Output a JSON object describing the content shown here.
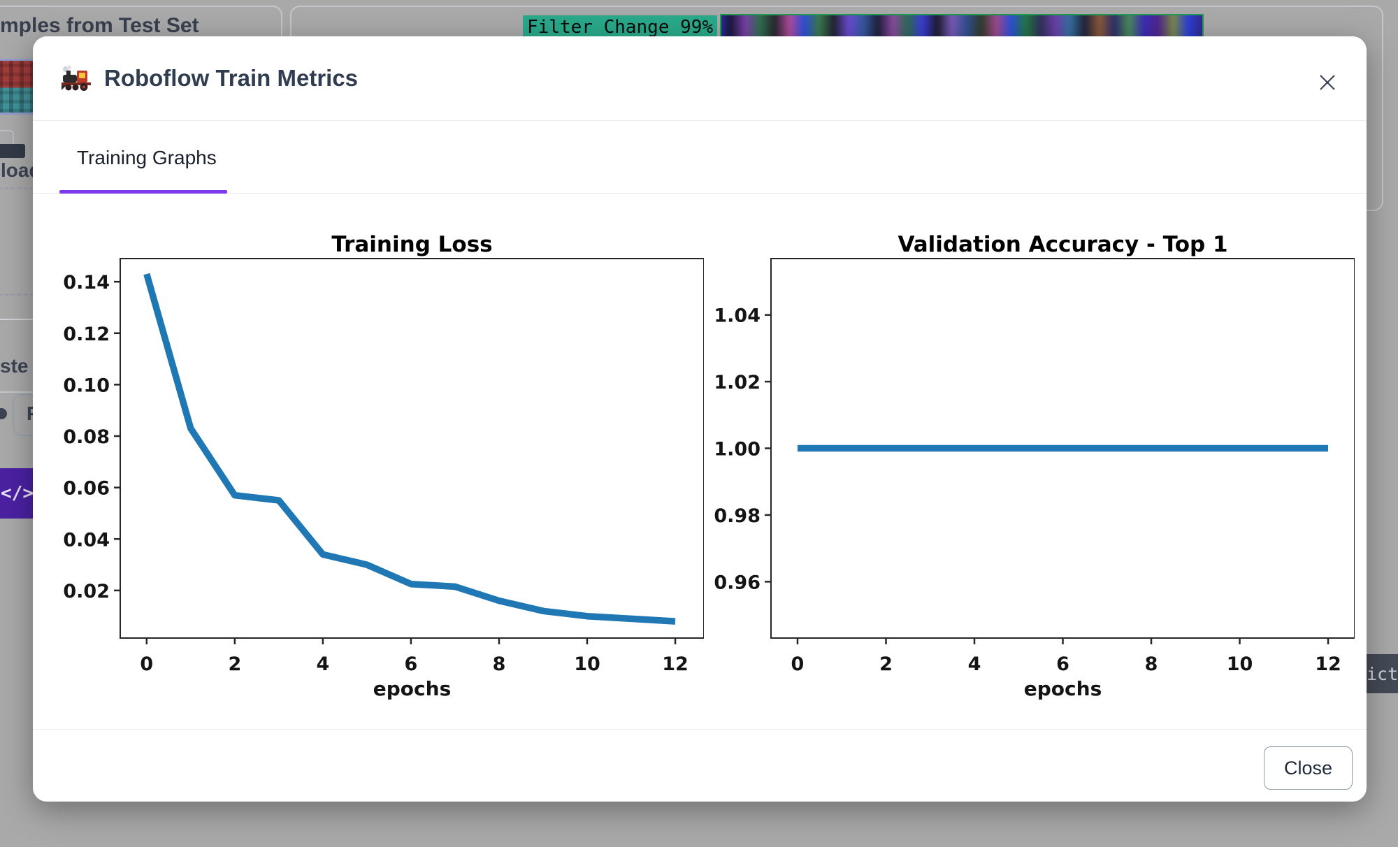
{
  "backdrop": {
    "test_set_card_title": "mples from Test Set",
    "upload_text": "load",
    "paste_text": "ste l",
    "paste_input_text": "P",
    "code_button_label": "</>",
    "filter_change_label": "Filter Change 99%",
    "predicted_text": "icte",
    "colors": {
      "overlay_gray": "#a9a9a9",
      "filter_chip_bg": "#2aa98a",
      "code_button_bg": "#4b21a3",
      "predicted_box_bg": "#444a55"
    }
  },
  "modal": {
    "title": "Roboflow Train Metrics",
    "title_icon": "steam-locomotive-emoji",
    "tab_label": "Training Graphs",
    "close_icon": "x-mark",
    "close_button_label": "Close",
    "accent_color": "#7c3aed"
  },
  "chart_data": [
    {
      "type": "line",
      "title": "Training Loss",
      "xlabel": "epochs",
      "x": [
        0,
        1,
        2,
        3,
        4,
        5,
        6,
        7,
        8,
        9,
        10,
        11,
        12
      ],
      "values": [
        0.143,
        0.083,
        0.057,
        0.055,
        0.034,
        0.03,
        0.0225,
        0.0215,
        0.016,
        0.012,
        0.01,
        0.009,
        0.008
      ],
      "xticks": [
        0,
        2,
        4,
        6,
        8,
        10,
        12
      ],
      "yticks": [
        0.02,
        0.04,
        0.06,
        0.08,
        0.1,
        0.12,
        0.14
      ],
      "ytick_labels": [
        "0.02",
        "0.04",
        "0.06",
        "0.08",
        "0.10",
        "0.12",
        "0.14"
      ],
      "xlim": [
        -0.6,
        12.65
      ],
      "ylim": [
        0.0015,
        0.149
      ],
      "line_color": "#1f77b4",
      "grid": false,
      "legend": null
    },
    {
      "type": "line",
      "title": "Validation Accuracy - Top 1",
      "xlabel": "epochs",
      "x": [
        0,
        1,
        2,
        3,
        4,
        5,
        6,
        7,
        8,
        9,
        10,
        11,
        12
      ],
      "values": [
        1.0,
        1.0,
        1.0,
        1.0,
        1.0,
        1.0,
        1.0,
        1.0,
        1.0,
        1.0,
        1.0,
        1.0,
        1.0
      ],
      "xticks": [
        0,
        2,
        4,
        6,
        8,
        10,
        12
      ],
      "yticks": [
        0.96,
        0.98,
        1.0,
        1.02,
        1.04
      ],
      "ytick_labels": [
        "0.96",
        "0.98",
        "1.00",
        "1.02",
        "1.04"
      ],
      "xlim": [
        -0.6,
        12.6
      ],
      "ylim": [
        0.9431,
        1.0569
      ],
      "line_color": "#1f77b4",
      "grid": false,
      "legend": null
    }
  ]
}
